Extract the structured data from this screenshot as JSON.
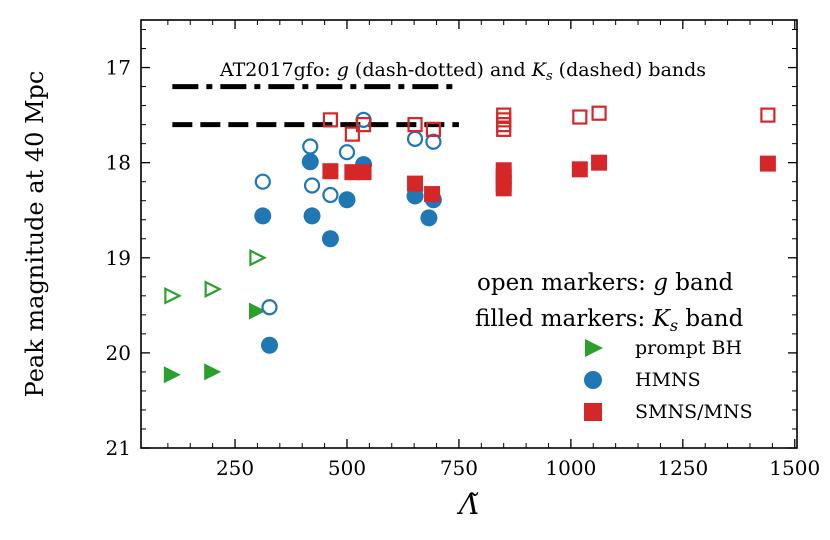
{
  "chart_data": {
    "type": "scatter",
    "xlabel": "Λ̃",
    "ylabel": "Peak magnitude at 40 Mpc",
    "xlim": [
      40,
      1505
    ],
    "ylim": [
      21,
      16.5
    ],
    "y_inverted": true,
    "xticks": [
      250,
      500,
      750,
      1000,
      1250,
      1500
    ],
    "xtick_labels": [
      "250",
      "500",
      "750",
      "1000",
      "1250",
      "1500"
    ],
    "yticks": [
      17,
      18,
      19,
      20,
      21
    ],
    "ytick_labels": [
      "17",
      "18",
      "19",
      "20",
      "21"
    ],
    "reference_lines": [
      {
        "name": "AT2017gfo g band",
        "style": "dash-dotted",
        "y": 17.2,
        "x_range": [
          110,
          750
        ]
      },
      {
        "name": "AT2017gfo Ks band",
        "style": "dashed",
        "y": 17.6,
        "x_range": [
          110,
          750
        ]
      }
    ],
    "annotations": {
      "reference_title": "AT2017gfo:",
      "reference_g": "g",
      "reference_dash_dotted": " (dash-dotted) and ",
      "reference_K": "K",
      "reference_s": "s",
      "reference_dashed": " (dashed) bands",
      "open_prefix": "open markers: ",
      "open_band": "g",
      "open_suffix": " band",
      "filled_prefix": "filled markers: ",
      "filled_K": "K",
      "filled_s": "s",
      "filled_suffix": " band"
    },
    "legend_position": "lower-right",
    "series": [
      {
        "name": "prompt BH",
        "marker": "triangle-right",
        "color": "#2ca02c",
        "g_band": [
          [
            110,
            19.4
          ],
          [
            200,
            19.33
          ],
          [
            300,
            19.0
          ]
        ],
        "Ks_band": [
          [
            110,
            20.23
          ],
          [
            200,
            20.2
          ],
          [
            300,
            19.56
          ]
        ]
      },
      {
        "name": "HMNS",
        "marker": "circle",
        "color": "#1f77b4",
        "g_band": [
          [
            312,
            18.2
          ],
          [
            327,
            19.52
          ],
          [
            418,
            17.83
          ],
          [
            422,
            18.24
          ],
          [
            463,
            18.34
          ],
          [
            500,
            17.89
          ],
          [
            537,
            17.55
          ],
          [
            652,
            17.75
          ],
          [
            693,
            17.78
          ]
        ],
        "Ks_band": [
          [
            312,
            18.56
          ],
          [
            327,
            19.92
          ],
          [
            418,
            17.99
          ],
          [
            422,
            18.56
          ],
          [
            463,
            18.8
          ],
          [
            500,
            18.39
          ],
          [
            537,
            18.02
          ],
          [
            652,
            18.35
          ],
          [
            683,
            18.58
          ],
          [
            693,
            18.39
          ]
        ]
      },
      {
        "name": "SMNS/MNS",
        "marker": "square",
        "color": "#d62728",
        "g_band": [
          [
            463,
            17.55
          ],
          [
            512,
            17.7
          ],
          [
            537,
            17.6
          ],
          [
            652,
            17.6
          ],
          [
            693,
            17.65
          ],
          [
            850,
            17.5
          ],
          [
            850,
            17.55
          ],
          [
            850,
            17.6
          ],
          [
            850,
            17.65
          ],
          [
            1020,
            17.52
          ],
          [
            1063,
            17.48
          ],
          [
            1440,
            17.5
          ]
        ],
        "Ks_band": [
          [
            463,
            18.09
          ],
          [
            512,
            18.1
          ],
          [
            537,
            18.1
          ],
          [
            652,
            18.22
          ],
          [
            690,
            18.33
          ],
          [
            850,
            18.08
          ],
          [
            850,
            18.15
          ],
          [
            850,
            18.22
          ],
          [
            850,
            18.27
          ],
          [
            1020,
            18.07
          ],
          [
            1063,
            18.0
          ],
          [
            1440,
            18.01
          ]
        ]
      }
    ]
  }
}
